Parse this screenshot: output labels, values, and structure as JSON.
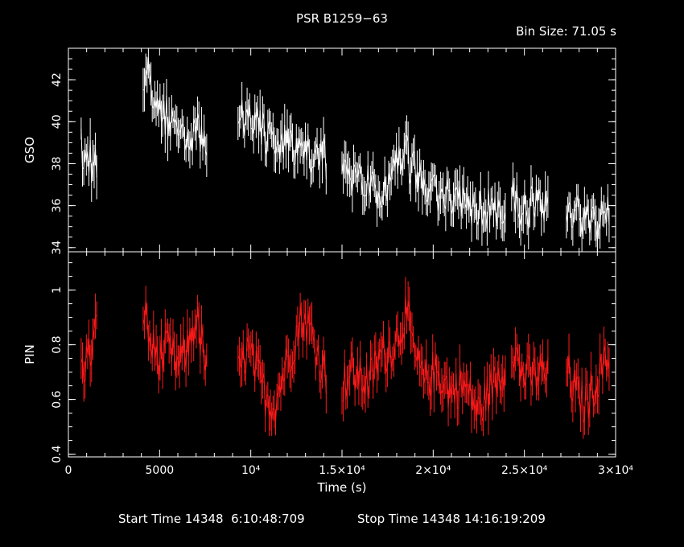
{
  "chart_data": [
    {
      "type": "line",
      "title": "PSR B1259−63",
      "bin_label": "Bin Size: 71.05 s",
      "ylabel": "GSO",
      "xlabel": "Time (s)",
      "xlim": [
        0,
        30000
      ],
      "ylim": [
        33.8,
        43.5
      ],
      "yticks": [
        "34",
        "36",
        "38",
        "40",
        "42"
      ],
      "ytick_values": [
        34,
        36,
        38,
        40,
        42
      ],
      "color": "#ffffff",
      "segments": [
        {
          "x": [
            700,
            1000,
            1300,
            1600
          ],
          "y": [
            38.7,
            38.6,
            37.9,
            38.5
          ]
        },
        {
          "x": [
            4100,
            4500,
            5000,
            5500,
            6000,
            6500,
            7000,
            7600
          ],
          "y": [
            42.2,
            42.0,
            40.9,
            40.0,
            39.7,
            39.4,
            39.6,
            38.6
          ]
        },
        {
          "x": [
            9300,
            9800,
            10300,
            10800,
            11300,
            11800,
            12300,
            12800,
            13300,
            13800,
            14200
          ],
          "y": [
            40.0,
            40.2,
            40.0,
            39.5,
            39.0,
            38.9,
            38.5,
            38.7,
            38.5,
            38.7,
            38.2
          ]
        },
        {
          "x": [
            15000,
            15500,
            16000,
            16500,
            17000,
            17500,
            18000,
            18500,
            19000,
            19500,
            20000,
            20500,
            21000,
            21500,
            22000,
            22500,
            23000,
            23500,
            24000
          ],
          "y": [
            37.6,
            37.2,
            37.0,
            37.0,
            36.8,
            37.0,
            37.8,
            38.4,
            37.5,
            36.9,
            36.7,
            36.5,
            36.3,
            36.2,
            36.0,
            35.8,
            35.8,
            35.7,
            35.6
          ]
        },
        {
          "x": [
            24300,
            24800,
            25300,
            25800,
            26300
          ],
          "y": [
            36.3,
            36.0,
            35.9,
            35.8,
            35.9
          ]
        },
        {
          "x": [
            27300,
            27800,
            28300,
            28800,
            29300,
            29700
          ],
          "y": [
            36.0,
            35.6,
            35.3,
            35.1,
            35.4,
            35.8
          ]
        }
      ]
    },
    {
      "type": "line",
      "ylabel": "PIN",
      "xlim": [
        0,
        30000
      ],
      "ylim": [
        0.39,
        1.14
      ],
      "yticks": [
        "0.4",
        "0.6",
        "0.8",
        "1"
      ],
      "ytick_values": [
        0.4,
        0.6,
        0.8,
        1.0
      ],
      "xticks": [
        "0",
        "5000",
        "10⁴",
        "1.5×10⁴",
        "2×10⁴",
        "2.5×10⁴",
        "3×10⁴"
      ],
      "xtick_values": [
        0,
        5000,
        10000,
        15000,
        20000,
        25000,
        30000
      ],
      "color": "#ff1a1a",
      "segments": [
        {
          "x": [
            700,
            1000,
            1300,
            1600
          ],
          "y": [
            0.7,
            0.75,
            0.78,
            0.88
          ]
        },
        {
          "x": [
            4100,
            4500,
            5000,
            5500,
            6000,
            6500,
            7000,
            7600
          ],
          "y": [
            0.95,
            0.8,
            0.75,
            0.78,
            0.72,
            0.78,
            0.9,
            0.7
          ]
        },
        {
          "x": [
            9300,
            9800,
            10300,
            10800,
            11300,
            11800,
            12300,
            12800,
            13300,
            13800,
            14200
          ],
          "y": [
            0.68,
            0.78,
            0.7,
            0.62,
            0.58,
            0.7,
            0.8,
            0.9,
            0.85,
            0.74,
            0.68
          ]
        },
        {
          "x": [
            15000,
            15500,
            16000,
            16500,
            17000,
            17500,
            18000,
            18500,
            19000,
            19500,
            20000,
            20500,
            21000,
            21500,
            22000,
            22500,
            23000,
            23500,
            24000
          ],
          "y": [
            0.65,
            0.7,
            0.68,
            0.66,
            0.75,
            0.78,
            0.82,
            0.92,
            0.75,
            0.66,
            0.7,
            0.68,
            0.62,
            0.66,
            0.62,
            0.55,
            0.62,
            0.68,
            0.72
          ]
        },
        {
          "x": [
            24300,
            24800,
            25300,
            25800,
            26300
          ],
          "y": [
            0.82,
            0.7,
            0.68,
            0.7,
            0.68
          ]
        },
        {
          "x": [
            27300,
            27800,
            28300,
            28800,
            29300,
            29700
          ],
          "y": [
            0.72,
            0.62,
            0.58,
            0.65,
            0.72,
            0.75
          ]
        }
      ]
    }
  ],
  "footer": {
    "start_label": "Start Time 14348  6:10:48:709",
    "stop_label": "Stop Time 14348 14:16:19:209"
  }
}
